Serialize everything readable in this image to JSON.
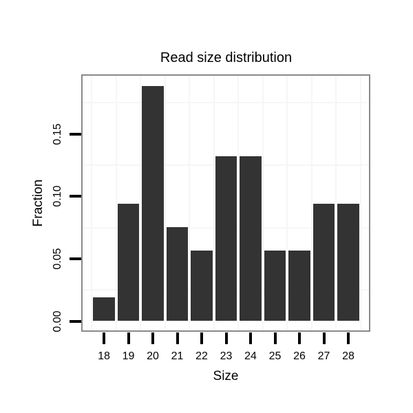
{
  "chart_data": {
    "type": "bar",
    "title": "Read size distribution",
    "xlabel": "Size",
    "ylabel": "Fraction",
    "categories": [
      18,
      19,
      20,
      21,
      22,
      23,
      24,
      25,
      26,
      27,
      28
    ],
    "values": [
      0.0189,
      0.0943,
      0.1887,
      0.0755,
      0.0566,
      0.1321,
      0.1321,
      0.0566,
      0.0566,
      0.0943,
      0.0943
    ],
    "y_ticks": [
      {
        "value": 0.0,
        "label": "0.00"
      },
      {
        "value": 0.05,
        "label": "0.05"
      },
      {
        "value": 0.1,
        "label": "0.10"
      },
      {
        "value": 0.15,
        "label": "0.15"
      }
    ],
    "ylim": [
      0,
      0.198
    ],
    "grid_minor_y": [
      0.025,
      0.075,
      0.125,
      0.175
    ],
    "grid": "minor-only",
    "legend": "none",
    "colors": {
      "bar_fill": "#333333",
      "panel_border": "#898989",
      "grid_line": "#f6f6f6",
      "tick": "#000000",
      "text": "#000000",
      "background": "#ffffff"
    }
  }
}
